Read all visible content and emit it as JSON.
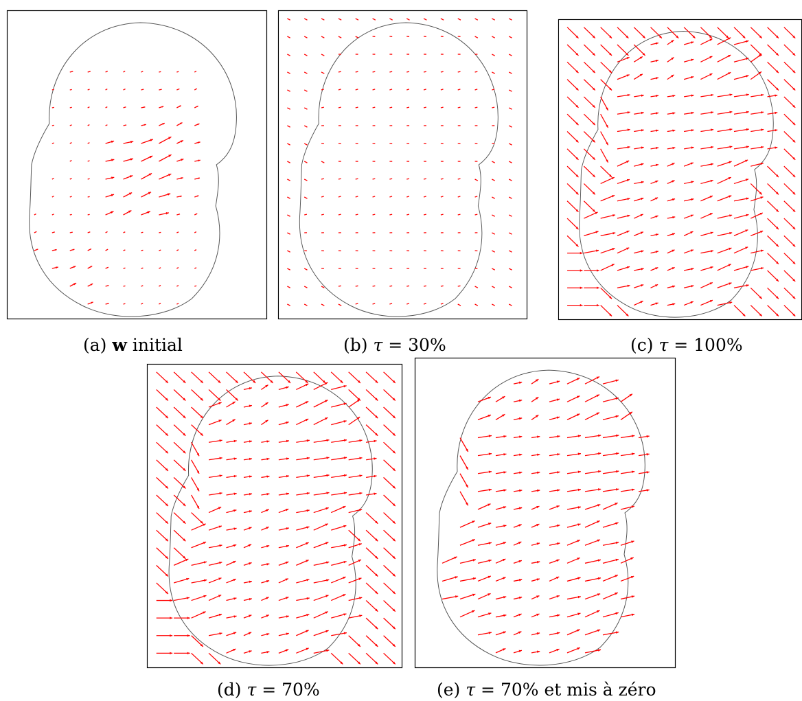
{
  "figure": {
    "vector_color": "#ff0000",
    "contour_color": "#555555",
    "frame_color": "#000000",
    "panels": [
      {
        "id": "a",
        "caption_prefix": "(a)",
        "caption_bold": "w",
        "caption_rest": " initial",
        "caption_symbol": "",
        "field": "initial"
      },
      {
        "id": "b",
        "caption_prefix": "(b)",
        "caption_bold": "",
        "caption_symbol": "τ",
        "caption_rest": " = 30%",
        "field": "weak"
      },
      {
        "id": "c",
        "caption_prefix": "(c)",
        "caption_bold": "",
        "caption_symbol": "τ",
        "caption_rest": " = 100%",
        "field": "full"
      },
      {
        "id": "d",
        "caption_prefix": "(d)",
        "caption_bold": "",
        "caption_symbol": "τ",
        "caption_rest": " = 70%",
        "field": "full"
      },
      {
        "id": "e",
        "caption_prefix": "(e)",
        "caption_bold": "",
        "caption_symbol": "τ",
        "caption_rest": " = 70% et mis à zéro",
        "field": "masked"
      }
    ]
  }
}
